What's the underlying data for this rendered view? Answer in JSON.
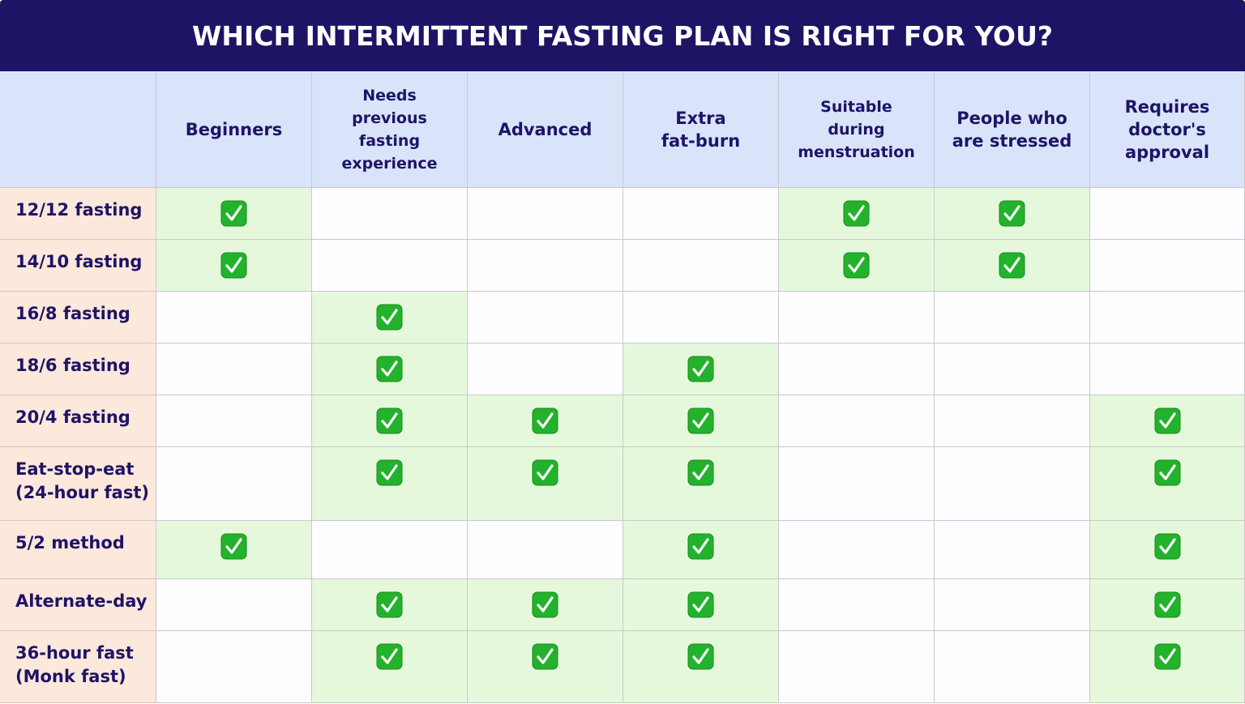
{
  "header": {
    "title": "WHICH INTERMITTENT FASTING PLAN IS RIGHT FOR YOU?"
  },
  "table": {
    "columns": [
      "Beginners",
      "Needs\nprevious\nfasting\nexperience",
      "Advanced",
      "Extra\nfat-burn",
      "Suitable\nduring\nmenstruation",
      "People who\nare stressed",
      "Requires\ndoctor's\napproval"
    ],
    "rows": [
      {
        "label": "12/12 fasting",
        "checks": [
          true,
          false,
          false,
          false,
          true,
          true,
          false
        ]
      },
      {
        "label": "14/10 fasting",
        "checks": [
          true,
          false,
          false,
          false,
          true,
          true,
          false
        ]
      },
      {
        "label": "16/8 fasting",
        "checks": [
          false,
          true,
          false,
          false,
          false,
          false,
          false
        ]
      },
      {
        "label": "18/6 fasting",
        "checks": [
          false,
          true,
          false,
          true,
          false,
          false,
          false
        ]
      },
      {
        "label": "20/4 fasting",
        "checks": [
          false,
          true,
          true,
          true,
          false,
          false,
          true
        ]
      },
      {
        "label": "Eat-stop-eat\n(24-hour fast)",
        "checks": [
          false,
          true,
          true,
          true,
          false,
          false,
          true
        ]
      },
      {
        "label": "5/2 method",
        "checks": [
          true,
          false,
          false,
          true,
          false,
          false,
          true
        ]
      },
      {
        "label": "Alternate-day",
        "checks": [
          false,
          true,
          true,
          true,
          false,
          false,
          true
        ]
      },
      {
        "label": "36-hour fast\n(Monk fast)",
        "checks": [
          false,
          true,
          true,
          true,
          false,
          false,
          true
        ]
      }
    ]
  }
}
